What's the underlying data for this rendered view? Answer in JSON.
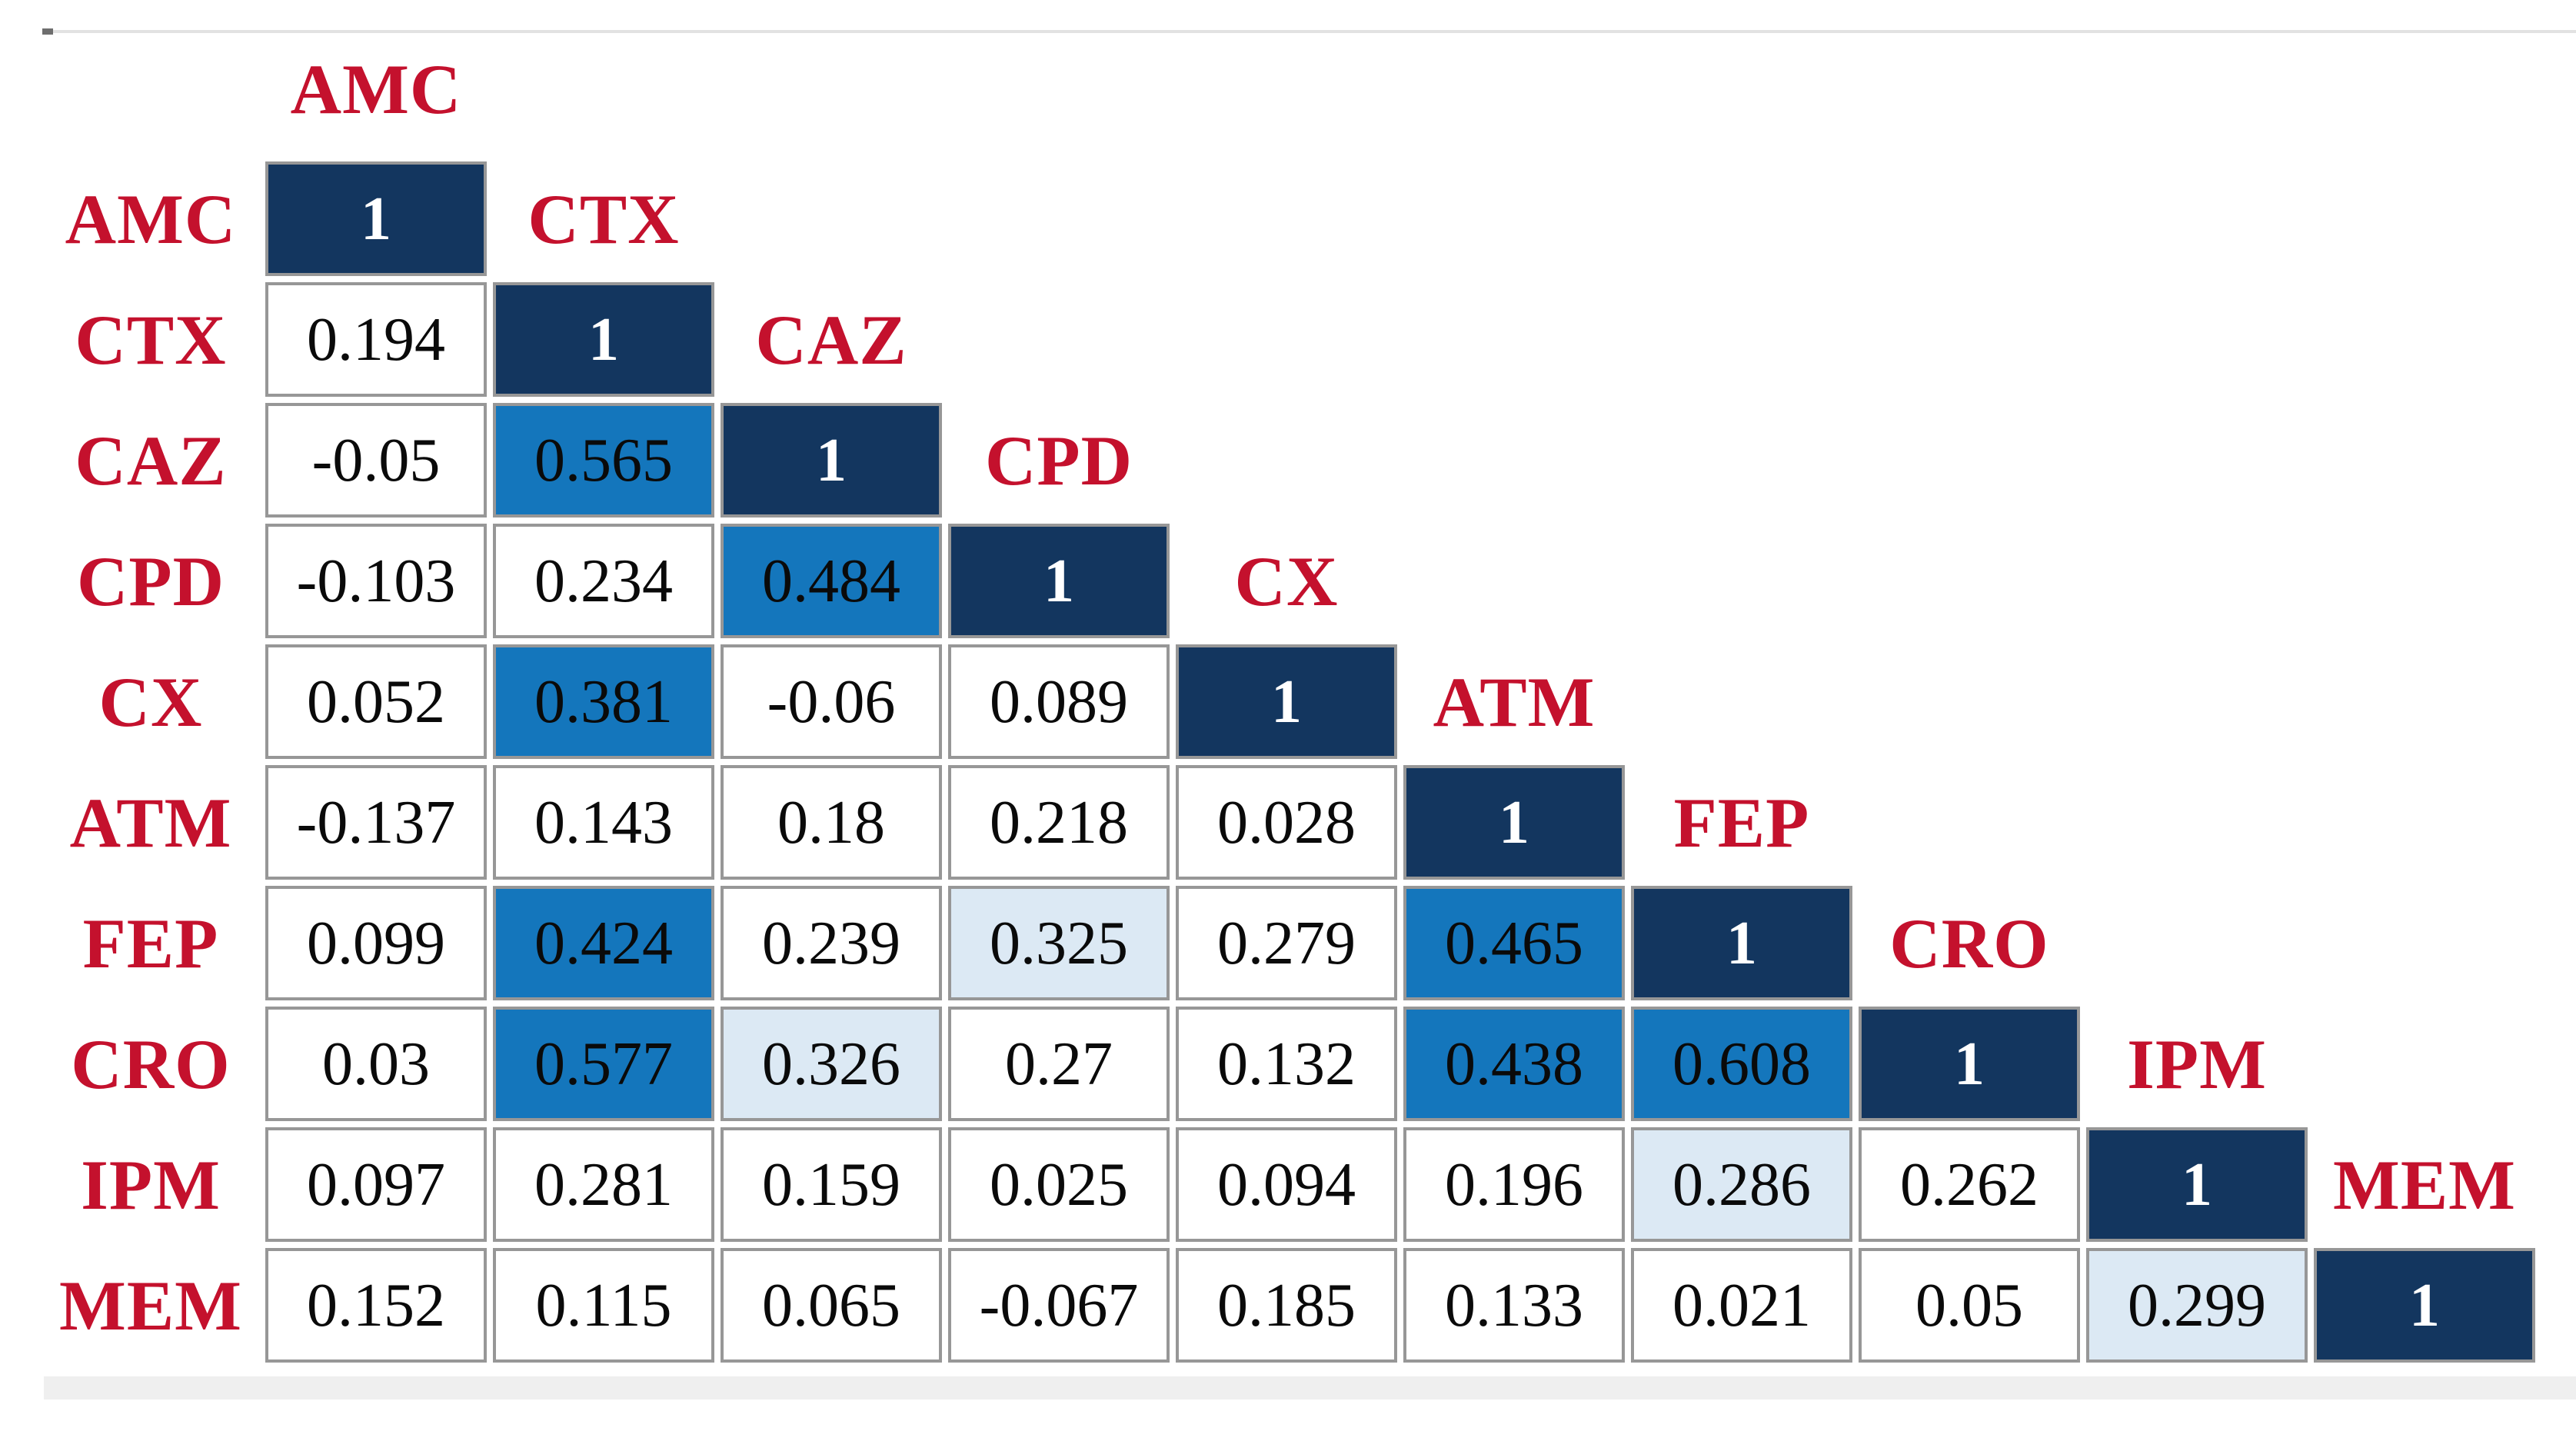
{
  "figure": {
    "background": "#FFFFFF",
    "top_rule_color": "#E2E2E2",
    "bottom_band_color": "#EFEFEF",
    "cell_border_color": "#979797",
    "label_color": "#C4112D"
  },
  "chart_data": {
    "type": "heatmap",
    "matrix_shape": "lower-triangular",
    "labels": [
      "AMC",
      "CTX",
      "CAZ",
      "CPD",
      "CX",
      "ATM",
      "FEP",
      "CRO",
      "IPM",
      "MEM"
    ],
    "diagonal_value": "1",
    "palette": {
      "d": {
        "bg": "#13365F",
        "fg": "#FFFFFF",
        "bold": true
      },
      "m": {
        "bg": "#1476BC",
        "fg": "#0A0A0A",
        "bold": false
      },
      "l": {
        "bg": "#DCE9F4",
        "fg": "#0A0A0A",
        "bold": false
      },
      "w": {
        "bg": "#FFFFFF",
        "fg": "#0A0A0A",
        "bold": false
      }
    },
    "rows": [
      {
        "label": "AMC",
        "cells": [
          {
            "v": "1",
            "c": "d"
          }
        ]
      },
      {
        "label": "CTX",
        "cells": [
          {
            "v": "0.194",
            "c": "w"
          },
          {
            "v": "1",
            "c": "d"
          }
        ]
      },
      {
        "label": "CAZ",
        "cells": [
          {
            "v": "-0.05",
            "c": "w"
          },
          {
            "v": "0.565",
            "c": "m"
          },
          {
            "v": "1",
            "c": "d"
          }
        ]
      },
      {
        "label": "CPD",
        "cells": [
          {
            "v": "-0.103",
            "c": "w"
          },
          {
            "v": "0.234",
            "c": "w"
          },
          {
            "v": "0.484",
            "c": "m"
          },
          {
            "v": "1",
            "c": "d"
          }
        ]
      },
      {
        "label": "CX",
        "cells": [
          {
            "v": "0.052",
            "c": "w"
          },
          {
            "v": "0.381",
            "c": "m"
          },
          {
            "v": "-0.06",
            "c": "w"
          },
          {
            "v": "0.089",
            "c": "w"
          },
          {
            "v": "1",
            "c": "d"
          }
        ]
      },
      {
        "label": "ATM",
        "cells": [
          {
            "v": "-0.137",
            "c": "w"
          },
          {
            "v": "0.143",
            "c": "w"
          },
          {
            "v": "0.18",
            "c": "w"
          },
          {
            "v": "0.218",
            "c": "w"
          },
          {
            "v": "0.028",
            "c": "w"
          },
          {
            "v": "1",
            "c": "d"
          }
        ]
      },
      {
        "label": "FEP",
        "cells": [
          {
            "v": "0.099",
            "c": "w"
          },
          {
            "v": "0.424",
            "c": "m"
          },
          {
            "v": "0.239",
            "c": "w"
          },
          {
            "v": "0.325",
            "c": "l"
          },
          {
            "v": "0.279",
            "c": "w"
          },
          {
            "v": "0.465",
            "c": "m"
          },
          {
            "v": "1",
            "c": "d"
          }
        ]
      },
      {
        "label": "CRO",
        "cells": [
          {
            "v": "0.03",
            "c": "w"
          },
          {
            "v": "0.577",
            "c": "m"
          },
          {
            "v": "0.326",
            "c": "l"
          },
          {
            "v": "0.27",
            "c": "w"
          },
          {
            "v": "0.132",
            "c": "w"
          },
          {
            "v": "0.438",
            "c": "m"
          },
          {
            "v": "0.608",
            "c": "m"
          },
          {
            "v": "1",
            "c": "d"
          }
        ]
      },
      {
        "label": "IPM",
        "cells": [
          {
            "v": "0.097",
            "c": "w"
          },
          {
            "v": "0.281",
            "c": "w"
          },
          {
            "v": "0.159",
            "c": "w"
          },
          {
            "v": "0.025",
            "c": "w"
          },
          {
            "v": "0.094",
            "c": "w"
          },
          {
            "v": "0.196",
            "c": "w"
          },
          {
            "v": "0.286",
            "c": "l"
          },
          {
            "v": "0.262",
            "c": "w"
          },
          {
            "v": "1",
            "c": "d"
          }
        ]
      },
      {
        "label": "MEM",
        "cells": [
          {
            "v": "0.152",
            "c": "w"
          },
          {
            "v": "0.115",
            "c": "w"
          },
          {
            "v": "0.065",
            "c": "w"
          },
          {
            "v": "-0.067",
            "c": "w"
          },
          {
            "v": "0.185",
            "c": "w"
          },
          {
            "v": "0.133",
            "c": "w"
          },
          {
            "v": "0.021",
            "c": "w"
          },
          {
            "v": "0.05",
            "c": "w"
          },
          {
            "v": "0.299",
            "c": "l"
          },
          {
            "v": "1",
            "c": "d"
          }
        ]
      }
    ]
  }
}
